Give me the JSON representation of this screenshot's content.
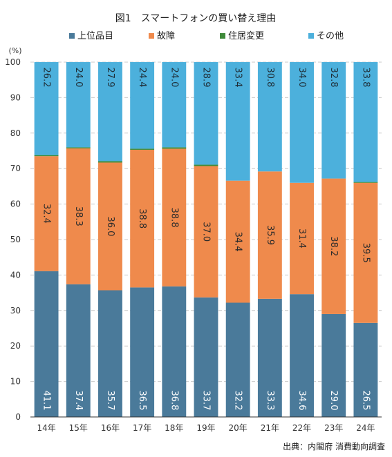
{
  "title": "図1　スマートフォンの買い替え理由",
  "y_unit": "(%)",
  "source": "出典：内閣府 消費動向調査",
  "colors": {
    "upgrade": "#4a7a9a",
    "failure": "#ef8a4c",
    "relocation": "#3e8a3a",
    "other": "#4cb0dc",
    "grid": "#c9c9c9",
    "axis": "#333333"
  },
  "chart_data": {
    "type": "bar",
    "stacked": true,
    "title": "図1　スマートフォンの買い替え理由",
    "ylabel": "(%)",
    "ylim": [
      0,
      100
    ],
    "yticks": [
      0,
      10,
      20,
      30,
      40,
      50,
      60,
      70,
      80,
      90,
      100
    ],
    "grid": true,
    "legend_position": "top",
    "categories": [
      "14年",
      "15年",
      "16年",
      "17年",
      "18年",
      "19年",
      "20年",
      "21年",
      "22年",
      "23年",
      "24年"
    ],
    "series": [
      {
        "name": "上位品目",
        "color": "#4a7a9a",
        "values": [
          41.1,
          37.4,
          35.7,
          36.5,
          36.8,
          33.7,
          32.2,
          33.3,
          34.6,
          29.0,
          26.5
        ],
        "labels": [
          "41.1",
          "37.4",
          "35.7",
          "36.5",
          "36.8",
          "33.7",
          "32.2",
          "33.3",
          "34.6",
          "29.0",
          "26.5"
        ]
      },
      {
        "name": "故障",
        "color": "#ef8a4c",
        "values": [
          32.4,
          38.3,
          36.0,
          38.8,
          38.8,
          37.0,
          34.4,
          35.9,
          31.4,
          38.2,
          39.5
        ],
        "labels": [
          "32.4",
          "38.3",
          "36.0",
          "38.8",
          "38.8",
          "37.0",
          "34.4",
          "35.9",
          "31.4",
          "38.2",
          "39.5"
        ]
      },
      {
        "name": "住居変更",
        "color": "#3e8a3a",
        "values": [
          0.3,
          0.3,
          0.4,
          0.3,
          0.4,
          0.4,
          0.0,
          0.0,
          0.0,
          0.0,
          0.2
        ],
        "labels": [
          "",
          "",
          "",
          "",
          "",
          "",
          "",
          "",
          "",
          "",
          ""
        ]
      },
      {
        "name": "その他",
        "color": "#4cb0dc",
        "values": [
          26.2,
          24.0,
          27.9,
          24.4,
          24.0,
          28.9,
          33.4,
          30.8,
          34.0,
          32.8,
          33.8
        ],
        "labels": [
          "26.2",
          "24.0",
          "27.9",
          "24.4",
          "24.0",
          "28.9",
          "33.4",
          "30.8",
          "34.0",
          "32.8",
          "33.8"
        ]
      }
    ]
  }
}
